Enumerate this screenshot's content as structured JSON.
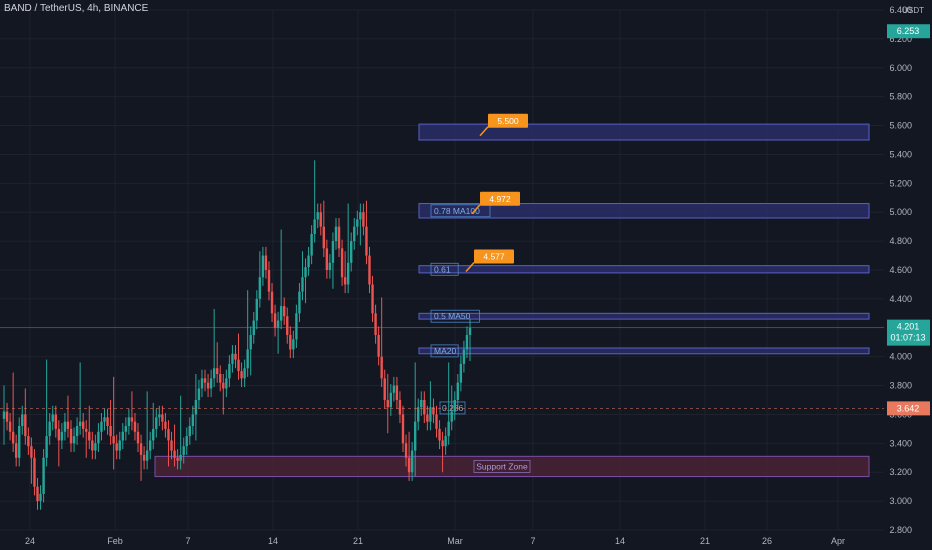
{
  "header": {
    "symbol": "BAND / TetherUS, 4h, BINANCE",
    "unit": "USDT"
  },
  "colors": {
    "background": "#131722",
    "up": "#26a69a",
    "down": "#ef5350",
    "grid": "#1e222d",
    "zone_fill": "#2a2e6b",
    "zone_border": "#5b5fc7",
    "support_fill": "#4a2234",
    "support_border": "#7a4fa8",
    "target_tag": "#f7941d",
    "current_price": "#26a69a",
    "prev_price": "#e9795e"
  },
  "chart_data": {
    "type": "candlestick",
    "ylim": [
      2.8,
      6.4
    ],
    "y_ticks": [
      "2.800",
      "3.000",
      "3.200",
      "3.400",
      "3.600",
      "3.800",
      "4.000",
      "4.200",
      "4.400",
      "4.600",
      "4.800",
      "5.000",
      "5.200",
      "5.400",
      "5.600",
      "5.800",
      "6.000",
      "6.200",
      "6.400"
    ],
    "x_labels": [
      "24",
      "Feb",
      "7",
      "14",
      "21",
      "Mar",
      "7",
      "14",
      "21",
      "26",
      "Apr"
    ],
    "candles_close": [
      3.62,
      3.55,
      3.48,
      3.4,
      3.3,
      3.52,
      3.6,
      3.45,
      3.38,
      3.3,
      3.1,
      3.0,
      3.05,
      3.3,
      3.45,
      3.55,
      3.6,
      3.5,
      3.42,
      3.48,
      3.55,
      3.5,
      3.4,
      3.45,
      3.52,
      3.55,
      3.5,
      3.48,
      3.42,
      3.35,
      3.4,
      3.48,
      3.55,
      3.58,
      3.52,
      3.45,
      3.4,
      3.35,
      3.42,
      3.48,
      3.52,
      3.58,
      3.55,
      3.48,
      3.4,
      3.32,
      3.28,
      3.35,
      3.42,
      3.5,
      3.58,
      3.6,
      3.55,
      3.5,
      3.42,
      3.35,
      3.3,
      3.28,
      3.32,
      3.38,
      3.45,
      3.52,
      3.6,
      3.7,
      3.78,
      3.85,
      3.82,
      3.78,
      3.85,
      3.92,
      3.88,
      3.82,
      3.78,
      3.85,
      3.95,
      4.02,
      3.98,
      3.9,
      3.85,
      3.92,
      4.05,
      4.15,
      4.25,
      4.4,
      4.55,
      4.7,
      4.6,
      4.45,
      4.3,
      4.2,
      4.25,
      4.35,
      4.28,
      4.15,
      4.05,
      4.12,
      4.3,
      4.45,
      4.55,
      4.62,
      4.7,
      4.85,
      4.95,
      5.0,
      4.9,
      4.75,
      4.6,
      4.65,
      4.8,
      4.9,
      4.75,
      4.55,
      4.5,
      4.65,
      4.8,
      4.9,
      4.95,
      5.0,
      4.9,
      4.7,
      4.5,
      4.3,
      4.15,
      4.0,
      3.85,
      3.7,
      3.65,
      3.75,
      3.8,
      3.7,
      3.6,
      3.4,
      3.3,
      3.2,
      3.35,
      3.55,
      3.65,
      3.7,
      3.6,
      3.55,
      3.65,
      3.6,
      3.5,
      3.42,
      3.38,
      3.45,
      3.55,
      3.62,
      3.7,
      3.82,
      3.95,
      4.05,
      4.15,
      4.2
    ],
    "support_zone": {
      "label": "Support Zone",
      "low": 3.17,
      "high": 3.31
    },
    "resistance_zones": [
      {
        "label": "",
        "low": 5.5,
        "high": 5.61,
        "target": "5.500"
      },
      {
        "label": "0.78 MA100",
        "low": 4.96,
        "high": 5.06,
        "target": "4.972"
      },
      {
        "label": "0.61",
        "low": 4.58,
        "high": 4.63,
        "target": "4.577"
      },
      {
        "label": "0.5 MA50",
        "low": 4.26,
        "high": 4.3,
        "target": ""
      },
      {
        "label": "MA20",
        "low": 4.02,
        "high": 4.06,
        "target": ""
      }
    ],
    "fib_label": "0.236",
    "current_price": {
      "value": "4.201",
      "countdown": "01:07:13"
    },
    "prev_price": "3.642",
    "top_price": "6.253"
  }
}
